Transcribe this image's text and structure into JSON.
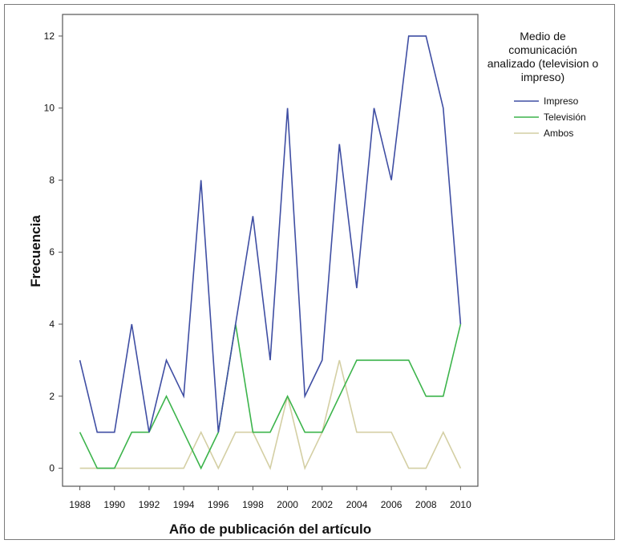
{
  "chart_data": {
    "type": "line",
    "xlabel": "Año de publicación del artículo",
    "ylabel": "Frecuencia",
    "x": [
      1988,
      1989,
      1990,
      1991,
      1992,
      1993,
      1994,
      1995,
      1996,
      1997,
      1998,
      1999,
      2000,
      2001,
      2002,
      2003,
      2004,
      2005,
      2006,
      2007,
      2008,
      2009,
      2010
    ],
    "x_ticks": [
      "1988",
      "1990",
      "1992",
      "1994",
      "1996",
      "1998",
      "2000",
      "2002",
      "2004",
      "2006",
      "2008",
      "2010"
    ],
    "y_ticks": [
      "0",
      "2",
      "4",
      "6",
      "8",
      "10",
      "12"
    ],
    "xlim": [
      1987,
      2011
    ],
    "ylim": [
      -0.5,
      12.6
    ],
    "legend": {
      "title_lines": [
        "Medio de",
        "comunicación",
        "analizado (television o",
        "impreso)"
      ],
      "placement": "right"
    },
    "series": [
      {
        "name": "Impreso",
        "color": "#3f4ea3",
        "values": [
          3,
          1,
          1,
          4,
          1,
          3,
          2,
          8,
          1,
          4,
          7,
          3,
          10,
          2,
          3,
          9,
          5,
          10,
          8,
          12,
          12,
          10,
          4
        ]
      },
      {
        "name": "Televisión",
        "color": "#3cb44b",
        "values": [
          1,
          0,
          0,
          1,
          1,
          2,
          1,
          0,
          1,
          4,
          1,
          1,
          2,
          1,
          1,
          2,
          3,
          3,
          3,
          3,
          2,
          2,
          4
        ]
      },
      {
        "name": "Ambos",
        "color": "#d4cfa4",
        "values": [
          0,
          0,
          0,
          0,
          0,
          0,
          0,
          1,
          0,
          1,
          1,
          0,
          2,
          0,
          1,
          3,
          1,
          1,
          1,
          0,
          0,
          1,
          0
        ]
      }
    ],
    "grid": false
  }
}
